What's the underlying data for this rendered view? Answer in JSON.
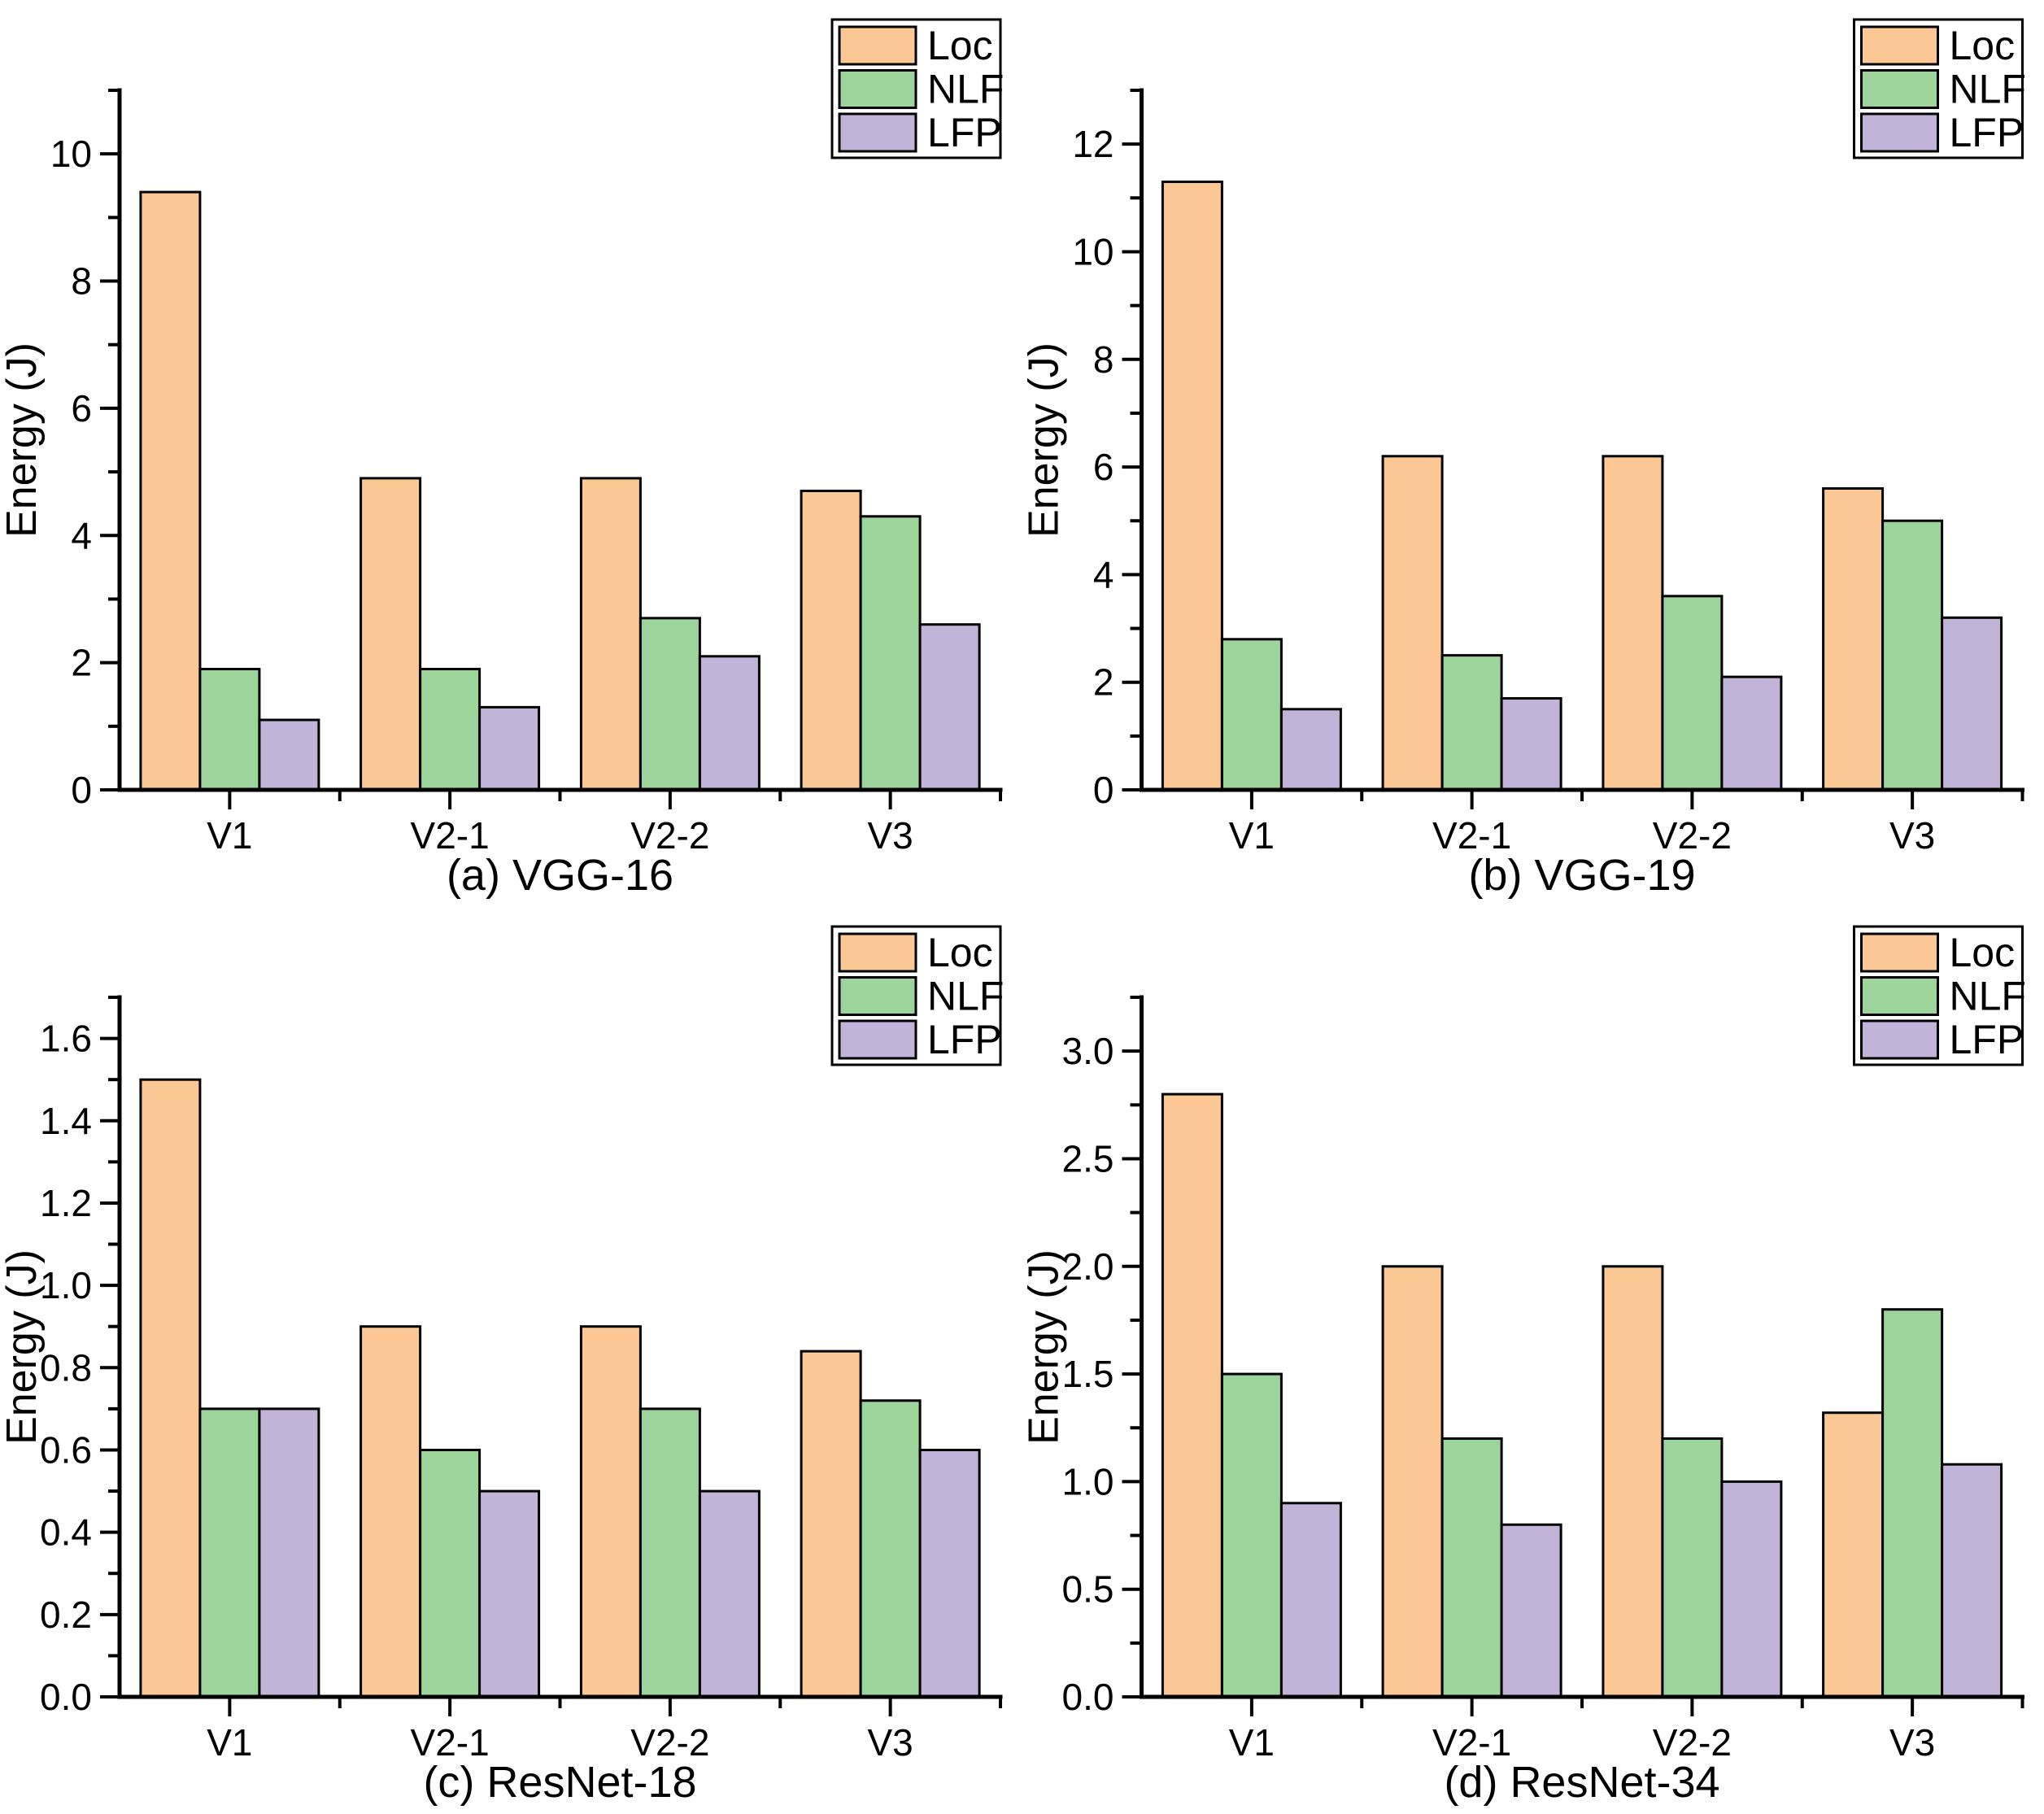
{
  "figure": {
    "background": "#ffffff",
    "ylabel": "Energy (J)",
    "categories": [
      "V1",
      "V2-1",
      "V2-2",
      "V3"
    ],
    "series_names": [
      "Loc",
      "NLF",
      "LFP"
    ],
    "colors": {
      "loc": "#FBC795",
      "nlf": "#9CD49B",
      "lfp": "#C2B3D8",
      "edge": "#000000",
      "axis": "#000000",
      "legend_background": "#ffffff"
    },
    "legend": {
      "items": [
        {
          "label": "Loc",
          "color": "#FBC795"
        },
        {
          "label": "NLF",
          "color": "#9CD49B"
        },
        {
          "label": "LFP",
          "color": "#C2B3D8"
        }
      ],
      "position": "top-right"
    }
  },
  "chart_data": [
    {
      "type": "bar",
      "title": "(a) VGG-16",
      "xlabel": "",
      "ylabel": "Energy (J)",
      "categories": [
        "V1",
        "V2-1",
        "V2-2",
        "V3"
      ],
      "series": [
        {
          "name": "Loc",
          "values": [
            9.4,
            4.9,
            4.9,
            4.7
          ]
        },
        {
          "name": "NLF",
          "values": [
            1.9,
            1.9,
            2.7,
            4.3
          ]
        },
        {
          "name": "LFP",
          "values": [
            1.1,
            1.3,
            2.1,
            2.6
          ]
        }
      ],
      "ylim": [
        0,
        11
      ],
      "yticks": [
        0,
        2,
        4,
        6,
        8,
        10
      ],
      "ytick_labels": [
        "0",
        "2",
        "4",
        "6",
        "8",
        "10"
      ],
      "minor_step": 1,
      "grid": false,
      "legend_position": "top-right"
    },
    {
      "type": "bar",
      "title": "(b) VGG-19",
      "xlabel": "",
      "ylabel": "Energy (J)",
      "categories": [
        "V1",
        "V2-1",
        "V2-2",
        "V3"
      ],
      "series": [
        {
          "name": "Loc",
          "values": [
            11.3,
            6.2,
            6.2,
            5.6
          ]
        },
        {
          "name": "NLF",
          "values": [
            2.8,
            2.5,
            3.6,
            5.0
          ]
        },
        {
          "name": "LFP",
          "values": [
            1.5,
            1.7,
            2.1,
            3.2
          ]
        }
      ],
      "ylim": [
        0,
        13
      ],
      "yticks": [
        0,
        2,
        4,
        6,
        8,
        10,
        12
      ],
      "ytick_labels": [
        "0",
        "2",
        "4",
        "6",
        "8",
        "10",
        "12"
      ],
      "minor_step": 1,
      "grid": false,
      "legend_position": "top-right"
    },
    {
      "type": "bar",
      "title": "(c) ResNet-18",
      "xlabel": "",
      "ylabel": "Energy (J)",
      "categories": [
        "V1",
        "V2-1",
        "V2-2",
        "V3"
      ],
      "series": [
        {
          "name": "Loc",
          "values": [
            1.5,
            0.9,
            0.9,
            0.84
          ]
        },
        {
          "name": "NLF",
          "values": [
            0.7,
            0.6,
            0.7,
            0.72
          ]
        },
        {
          "name": "LFP",
          "values": [
            0.7,
            0.5,
            0.5,
            0.6
          ]
        }
      ],
      "ylim": [
        0,
        1.7
      ],
      "yticks": [
        0,
        0.2,
        0.4,
        0.6,
        0.8,
        1.0,
        1.2,
        1.4,
        1.6
      ],
      "ytick_labels": [
        "0.0",
        "0.2",
        "0.4",
        "0.6",
        "0.8",
        "1.0",
        "1.2",
        "1.4",
        "1.6"
      ],
      "minor_step": 0.1,
      "grid": false,
      "legend_position": "top-right"
    },
    {
      "type": "bar",
      "title": "(d) ResNet-34",
      "xlabel": "",
      "ylabel": "Energy (J)",
      "categories": [
        "V1",
        "V2-1",
        "V2-2",
        "V3"
      ],
      "series": [
        {
          "name": "Loc",
          "values": [
            2.8,
            2.0,
            2.0,
            1.32
          ]
        },
        {
          "name": "NLF",
          "values": [
            1.5,
            1.2,
            1.2,
            1.8
          ]
        },
        {
          "name": "LFP",
          "values": [
            0.9,
            0.8,
            1.0,
            1.08
          ]
        }
      ],
      "ylim": [
        0,
        3.25
      ],
      "yticks": [
        0,
        0.5,
        1.0,
        1.5,
        2.0,
        2.5,
        3.0
      ],
      "ytick_labels": [
        "0.0",
        "0.5",
        "1.0",
        "1.5",
        "2.0",
        "2.5",
        "3.0"
      ],
      "minor_step": 0.25,
      "grid": false,
      "legend_position": "top-right"
    }
  ]
}
